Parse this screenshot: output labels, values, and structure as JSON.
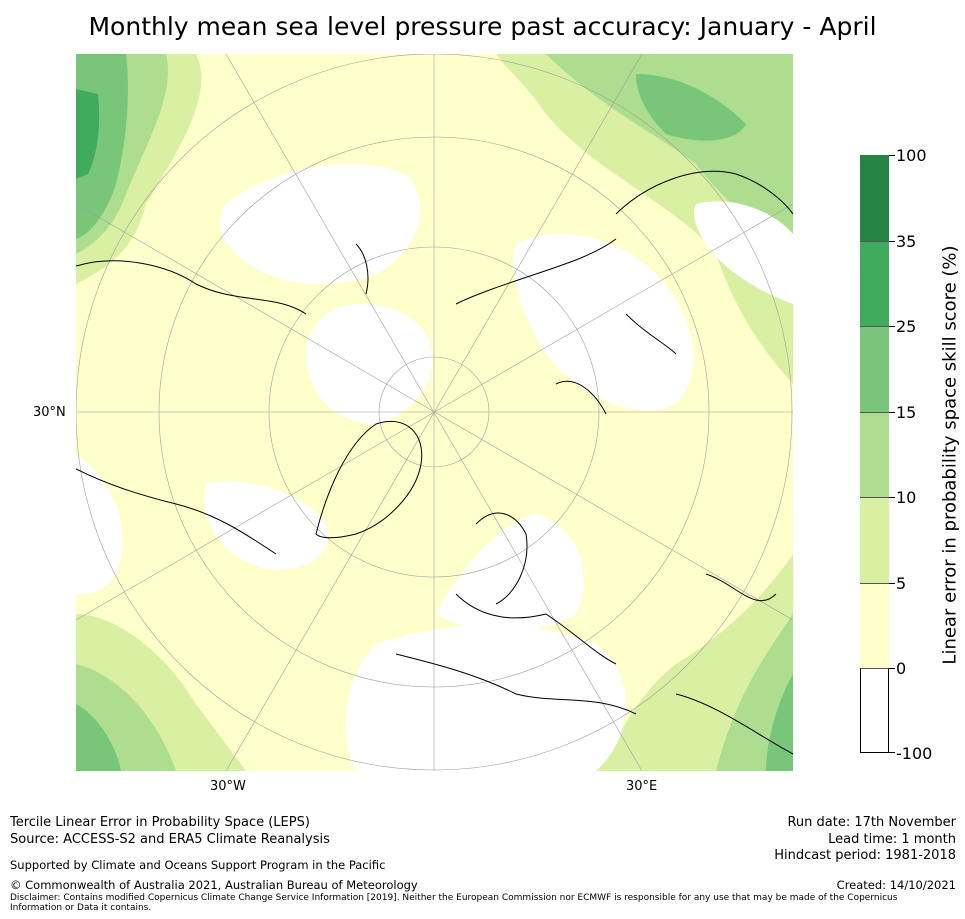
{
  "title": "Monthly mean sea level pressure past accuracy: January - April",
  "map": {
    "labels": {
      "lat_30n": "30°N",
      "lon_30w": "30°W",
      "lon_30e": "30°E"
    },
    "colors": {
      "white": "#ffffff",
      "pale_yellow": "#ffffcc",
      "light_green": "#d9f0a3",
      "green_10": "#addd8e",
      "green_15": "#78c679",
      "green_25": "#41ab5d",
      "green_35": "#238443",
      "grid": "#9e9e9e",
      "coast": "#000000"
    }
  },
  "colorbar": {
    "title": "Linear error in probability space skill score (%)",
    "ticks": [
      "100",
      "35",
      "25",
      "15",
      "10",
      "5",
      "0",
      "-100"
    ],
    "bins": [
      {
        "range": "35 to 100",
        "color": "#238443"
      },
      {
        "range": "25 to 35",
        "color": "#41ab5d"
      },
      {
        "range": "15 to 25",
        "color": "#78c679"
      },
      {
        "range": "10 to 15",
        "color": "#addd8e"
      },
      {
        "range": "5 to 10",
        "color": "#d9f0a3"
      },
      {
        "range": "0 to 5",
        "color": "#ffffcc"
      },
      {
        "range": "-100 to 0",
        "color": "#ffffff"
      }
    ]
  },
  "footer": {
    "line1": "Tercile Linear Error in Probability Space (LEPS)",
    "line2": "Source: ACCESS-S2 and ERA5 Climate Reanalysis",
    "support": "Supported by Climate and Oceans Support Program in the Pacific",
    "copyright": "© Commonwealth of Australia 2021, Australian Bureau of Meteorology",
    "disclaimer": "Disclaimer: Contains modified Copernicus Climate Change Service Information [2019]. Neither the European Commission nor ECMWF is responsible for any use that may be made of the Copernicus Information or Data it contains.",
    "run_date": "Run date: 17th November",
    "lead_time": "Lead time: 1 month",
    "hindcast": "Hindcast period: 1981-2018",
    "created": "Created: 14/10/2021"
  }
}
